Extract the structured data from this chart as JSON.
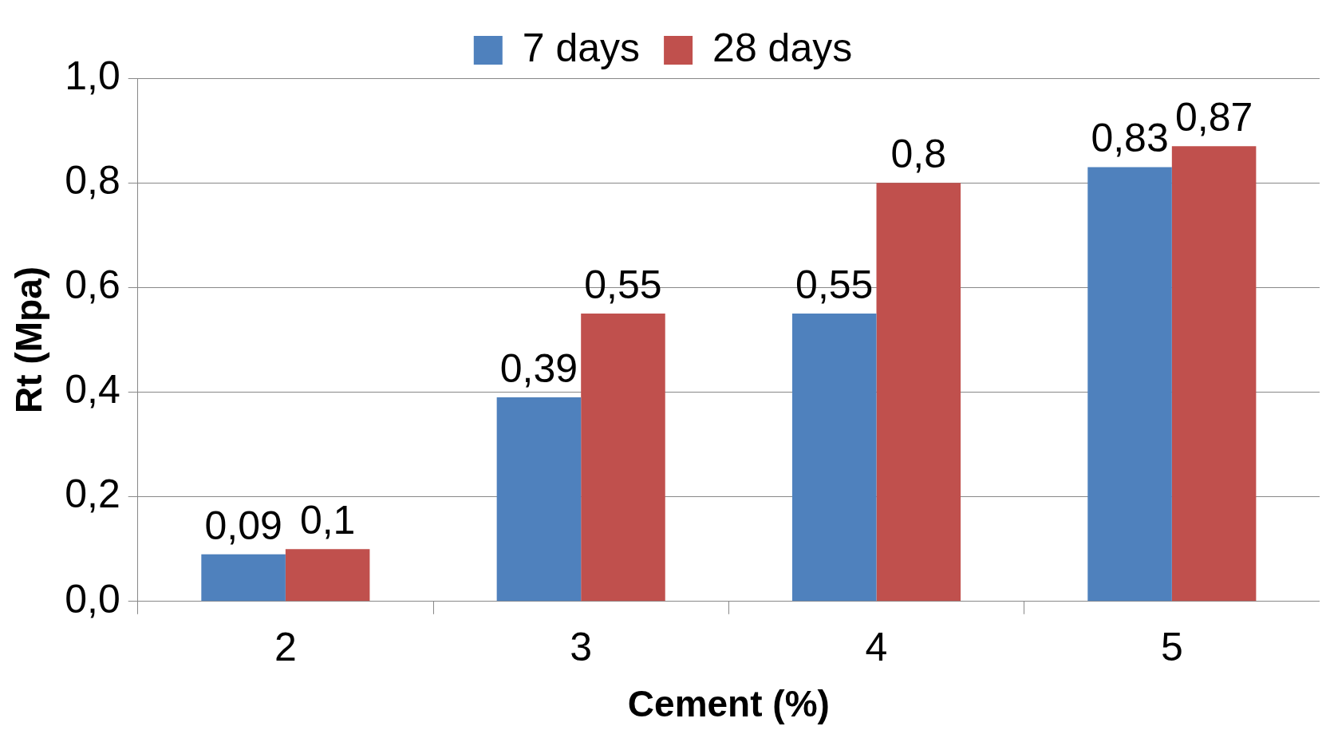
{
  "chart_data": {
    "type": "bar",
    "xlabel": "Cement (%)",
    "ylabel": "Rt (Mpa)",
    "categories": [
      "2",
      "3",
      "4",
      "5"
    ],
    "series": [
      {
        "name": "7 days",
        "color": "#4f81bd",
        "values": [
          0.09,
          0.39,
          0.55,
          0.83
        ],
        "value_labels": [
          "0,09",
          "0,39",
          "0,55",
          "0,83"
        ]
      },
      {
        "name": "28 days",
        "color": "#c0504d",
        "values": [
          0.1,
          0.55,
          0.8,
          0.87
        ],
        "value_labels": [
          "0,1",
          "0,55",
          "0,8",
          "0,87"
        ]
      }
    ],
    "ylim": [
      0,
      1
    ],
    "yticks": [
      {
        "value": 0,
        "label": "0,0"
      },
      {
        "value": 0.2,
        "label": "0,2"
      },
      {
        "value": 0.4,
        "label": "0,4"
      },
      {
        "value": 0.6,
        "label": "0,6"
      },
      {
        "value": 0.8,
        "label": "0,8"
      },
      {
        "value": 1,
        "label": "1,0"
      }
    ],
    "grid": "y",
    "legend": "top"
  }
}
